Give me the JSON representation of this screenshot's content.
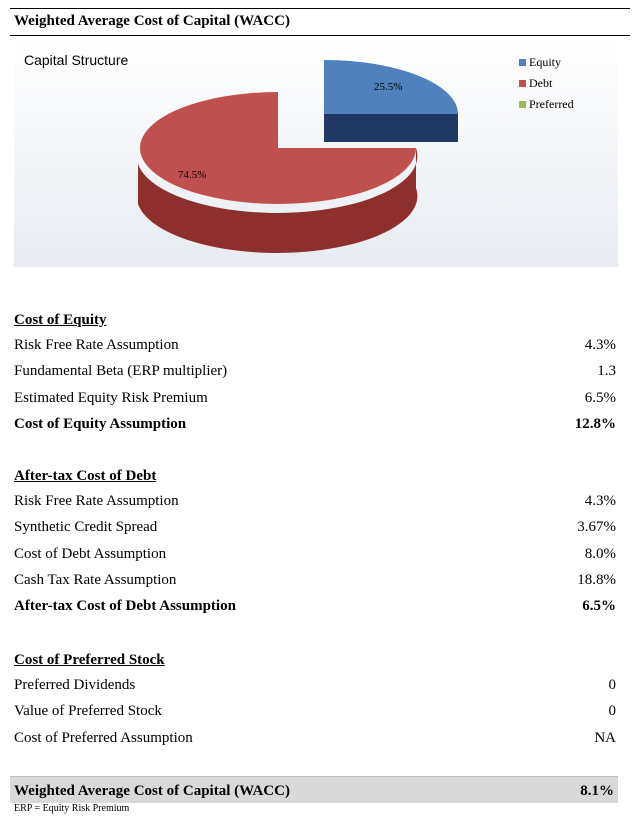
{
  "header": {
    "title": "Weighted Average Cost of Capital (WACC)"
  },
  "chart_data": {
    "type": "pie",
    "title": "Capital Structure",
    "categories": [
      "Equity",
      "Debt",
      "Preferred"
    ],
    "values": [
      25.5,
      74.5,
      0
    ],
    "value_labels": [
      "25.5%",
      "74.5%",
      ""
    ],
    "colors": [
      "#4f81bd",
      "#c0504d",
      "#9bbb59"
    ],
    "legend_position": "top-right",
    "style": "3d-exploded"
  },
  "cost_of_equity": {
    "heading": "Cost of Equity",
    "rows": [
      {
        "label": "Risk Free Rate Assumption",
        "value": "4.3%"
      },
      {
        "label": "Fundamental Beta (ERP multiplier)",
        "value": "1.3"
      },
      {
        "label": "Estimated Equity Risk Premium",
        "value": "6.5%"
      }
    ],
    "total": {
      "label": "Cost of Equity Assumption",
      "value": "12.8%"
    }
  },
  "cost_of_debt": {
    "heading": "After-tax Cost of Debt",
    "rows": [
      {
        "label": "Risk Free Rate Assumption",
        "value": "4.3%"
      },
      {
        "label": "Synthetic Credit Spread",
        "value": "3.67%"
      },
      {
        "label": "Cost of Debt Assumption",
        "value": "8.0%"
      },
      {
        "label": "Cash Tax Rate Assumption",
        "value": "18.8%"
      }
    ],
    "total": {
      "label": "After-tax Cost of Debt Assumption",
      "value": "6.5%"
    }
  },
  "cost_of_preferred": {
    "heading": "Cost of Preferred Stock",
    "rows": [
      {
        "label": "Preferred Dividends",
        "value": "0"
      },
      {
        "label": "Value of Preferred Stock",
        "value": "0"
      },
      {
        "label": "Cost of Preferred Assumption",
        "value": "NA"
      }
    ]
  },
  "wacc": {
    "label": "Weighted Average Cost of Capital (WACC)",
    "value": "8.1%"
  },
  "footnote": "ERP = Equity Risk Premium"
}
